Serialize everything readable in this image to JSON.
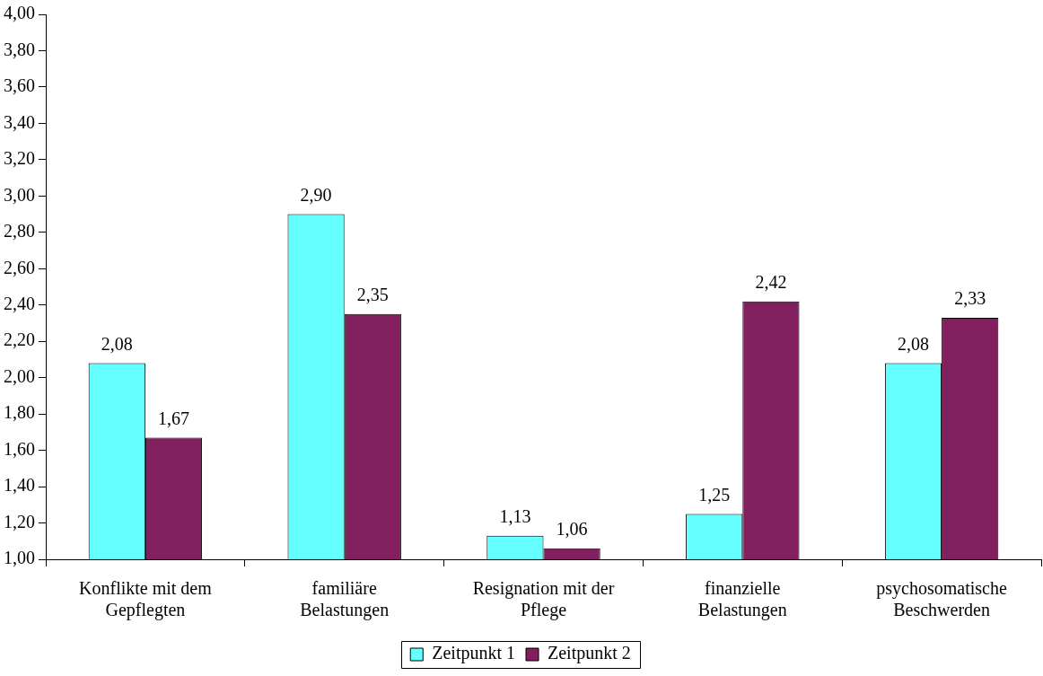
{
  "chart_data": {
    "type": "bar",
    "categories": [
      "Konflikte mit dem Gepflegten",
      "familiäre Belastungen",
      "Resignation mit der Pflege",
      "finanzielle Belastungen",
      "psychosomatische Beschwerden"
    ],
    "series": [
      {
        "name": "Zeitpunkt 1",
        "color": "#66ffff",
        "values": [
          2.08,
          2.9,
          1.13,
          1.25,
          2.08
        ],
        "value_labels": [
          "2,08",
          "2,90",
          "1,13",
          "1,25",
          "2,08"
        ]
      },
      {
        "name": "Zeitpunkt 2",
        "color": "#821f5e",
        "values": [
          1.67,
          2.35,
          1.06,
          2.42,
          2.33
        ],
        "value_labels": [
          "1,67",
          "2,35",
          "1,06",
          "2,42",
          "2,33"
        ]
      }
    ],
    "ylim": [
      1,
      4
    ],
    "yticks": [
      {
        "value": 1,
        "label": "1,00"
      },
      {
        "value": 1.2,
        "label": "1,20"
      },
      {
        "value": 1.4,
        "label": "1,40"
      },
      {
        "value": 1.6,
        "label": "1,60"
      },
      {
        "value": 1.8,
        "label": "1,80"
      },
      {
        "value": 2,
        "label": "2,00"
      },
      {
        "value": 2.2,
        "label": "2,20"
      },
      {
        "value": 2.4,
        "label": "2,40"
      },
      {
        "value": 2.6,
        "label": "2,60"
      },
      {
        "value": 2.8,
        "label": "2,80"
      },
      {
        "value": 3,
        "label": "3,00"
      },
      {
        "value": 3.2,
        "label": "3,20"
      },
      {
        "value": 3.4,
        "label": "3,40"
      },
      {
        "value": 3.6,
        "label": "3,60"
      },
      {
        "value": 3.8,
        "label": "3,80"
      },
      {
        "value": 4,
        "label": "4,00"
      }
    ],
    "grid": false,
    "legend": "bottom"
  }
}
